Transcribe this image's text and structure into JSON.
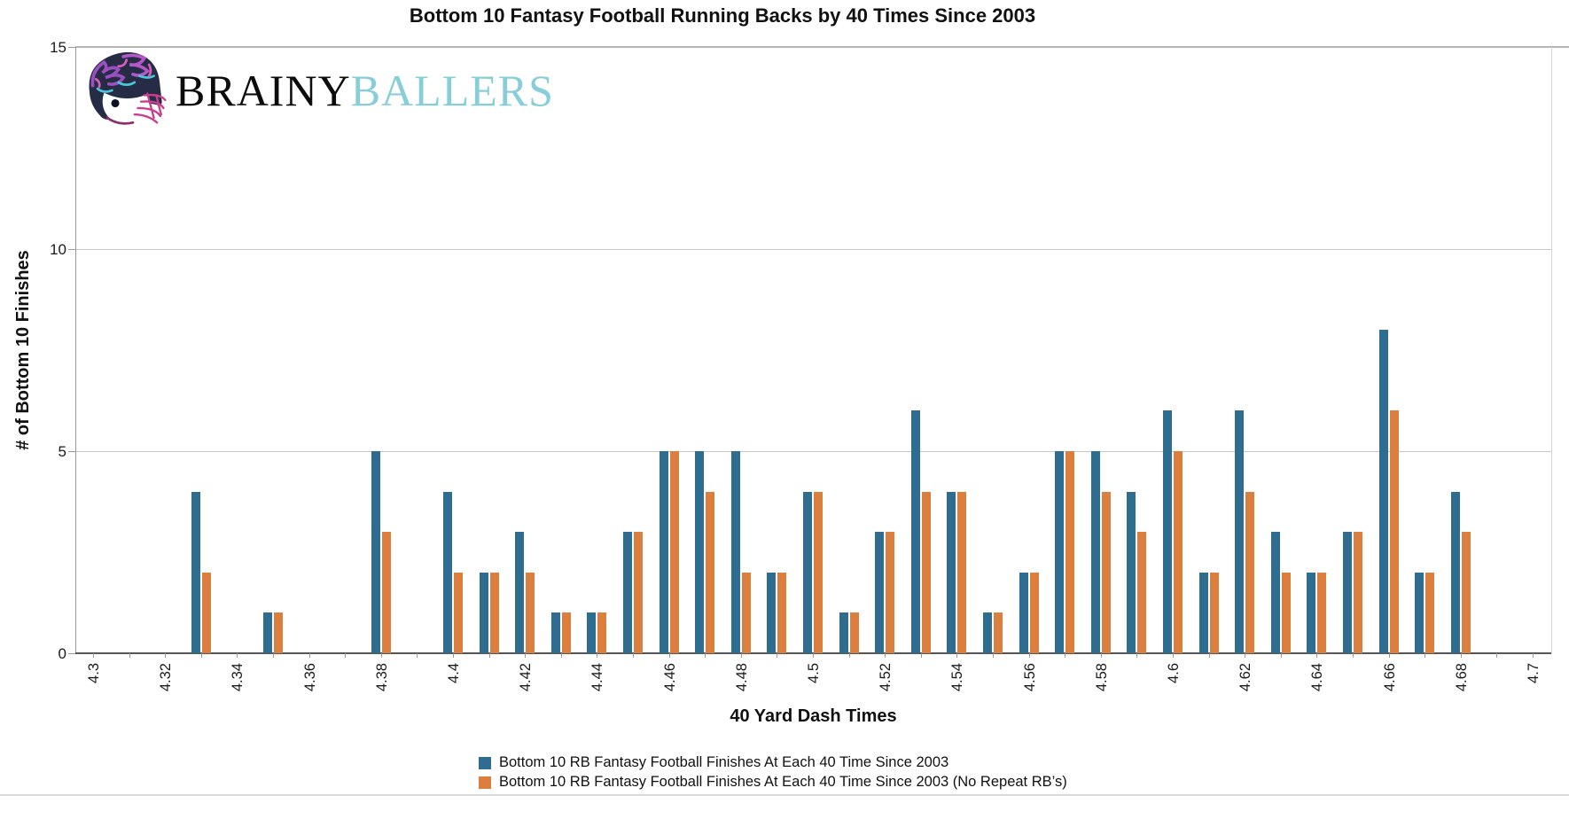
{
  "chart": {
    "title": "Bottom 10 Fantasy Football Running Backs by 40 Times Since 2003"
  },
  "logo": {
    "brand_black": "BRAINY",
    "brand_blue": "BALLERS"
  },
  "chart_data": {
    "type": "bar",
    "title": "Bottom 10 Fantasy Football Running Backs by 40 Times Since 2003",
    "xlabel": "40 Yard Dash Times",
    "ylabel": "# of Bottom 10 Finishes",
    "ylim": [
      0,
      15
    ],
    "y_ticks": [
      0,
      5,
      10,
      15
    ],
    "x_range": [
      4.3,
      4.7
    ],
    "bar_bin_width": 0.01,
    "x_tick_labels": [
      "4.3",
      "4.32",
      "4.34",
      "4.36",
      "4.38",
      "4.4",
      "4.42",
      "4.44",
      "4.46",
      "4.48",
      "4.5",
      "4.52",
      "4.54",
      "4.56",
      "4.58",
      "4.6",
      "4.62",
      "4.64",
      "4.66",
      "4.68",
      "4.7"
    ],
    "grid": "horizontal",
    "legend_position": "bottom",
    "series": [
      {
        "name": "Bottom 10 RB Fantasy Football Finishes At Each 40 Time Since 2003",
        "color": "#2e6d90"
      },
      {
        "name": "Bottom 10 RB Fantasy Football Finishes At Each 40 Time Since 2003 (No Repeat RB’s)",
        "color": "#dc7e3e"
      }
    ],
    "points": [
      {
        "x": 4.33,
        "values": [
          4,
          2
        ]
      },
      {
        "x": 4.35,
        "values": [
          1,
          1
        ]
      },
      {
        "x": 4.38,
        "values": [
          5,
          3
        ]
      },
      {
        "x": 4.4,
        "values": [
          4,
          2
        ]
      },
      {
        "x": 4.41,
        "values": [
          2,
          2
        ]
      },
      {
        "x": 4.42,
        "values": [
          3,
          2
        ]
      },
      {
        "x": 4.43,
        "values": [
          1,
          1
        ]
      },
      {
        "x": 4.44,
        "values": [
          1,
          1
        ]
      },
      {
        "x": 4.45,
        "values": [
          3,
          3
        ]
      },
      {
        "x": 4.46,
        "values": [
          5,
          5
        ]
      },
      {
        "x": 4.47,
        "values": [
          5,
          4
        ]
      },
      {
        "x": 4.48,
        "values": [
          5,
          2
        ]
      },
      {
        "x": 4.49,
        "values": [
          2,
          2
        ]
      },
      {
        "x": 4.5,
        "values": [
          4,
          4
        ]
      },
      {
        "x": 4.51,
        "values": [
          1,
          1
        ]
      },
      {
        "x": 4.52,
        "values": [
          3,
          3
        ]
      },
      {
        "x": 4.53,
        "values": [
          6,
          4
        ]
      },
      {
        "x": 4.54,
        "values": [
          4,
          4
        ]
      },
      {
        "x": 4.55,
        "values": [
          1,
          1
        ]
      },
      {
        "x": 4.56,
        "values": [
          2,
          2
        ]
      },
      {
        "x": 4.57,
        "values": [
          5,
          5
        ]
      },
      {
        "x": 4.58,
        "values": [
          5,
          4
        ]
      },
      {
        "x": 4.59,
        "values": [
          4,
          3
        ]
      },
      {
        "x": 4.6,
        "values": [
          6,
          5
        ]
      },
      {
        "x": 4.61,
        "values": [
          2,
          2
        ]
      },
      {
        "x": 4.62,
        "values": [
          6,
          4
        ]
      },
      {
        "x": 4.63,
        "values": [
          3,
          2
        ]
      },
      {
        "x": 4.64,
        "values": [
          2,
          2
        ]
      },
      {
        "x": 4.65,
        "values": [
          3,
          3
        ]
      },
      {
        "x": 4.66,
        "values": [
          8,
          6
        ]
      },
      {
        "x": 4.67,
        "values": [
          2,
          2
        ]
      },
      {
        "x": 4.68,
        "values": [
          4,
          3
        ]
      }
    ]
  }
}
